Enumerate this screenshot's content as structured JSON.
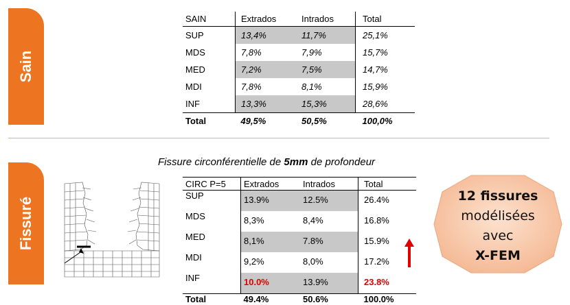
{
  "tabs": {
    "sain": "Sain",
    "fissure": "Fissuré"
  },
  "table_sain": {
    "headers": [
      "SAIN",
      "Extrados",
      "Intrados",
      "Total"
    ],
    "rows": [
      [
        "SUP",
        "13,4%",
        "11,7%",
        "25,1%"
      ],
      [
        "MDS",
        "7,8%",
        "7,9%",
        "15,7%"
      ],
      [
        "MED",
        "7,2%",
        "7,5%",
        "14,7%"
      ],
      [
        "MDI",
        "7,8%",
        "8,1%",
        "15,9%"
      ],
      [
        "INF",
        "13,3%",
        "15,3%",
        "28,6%"
      ]
    ],
    "total": [
      "Total",
      "49,5%",
      "50,5%",
      "100,0%"
    ]
  },
  "caption": {
    "prefix": "Fissure circonférentielle de ",
    "depth": "5mm",
    "suffix": " de profondeur"
  },
  "table_fissure": {
    "headers": [
      "CIRC P=5",
      "Extrados",
      "Intrados",
      "Total"
    ],
    "rows": [
      [
        "SUP",
        "13.9%",
        "12.5%",
        "26.4%"
      ],
      [
        "MDS",
        "8,3%",
        "8,4%",
        "16.8%"
      ],
      [
        "MED",
        "8,1%",
        "7.8%",
        "15.9%"
      ],
      [
        "MDI",
        "9,2%",
        "8,0%",
        "17.2%"
      ],
      [
        "INF",
        "10.0%",
        "13.9%",
        "23.8%"
      ]
    ],
    "total": [
      "Total",
      "49.4%",
      "50.6%",
      "100.0%"
    ]
  },
  "badge": {
    "line1": "12 fissures",
    "line2": "modélisées",
    "line3": "avec",
    "line4": "X-FEM"
  },
  "colors": {
    "accent": "#ed7420",
    "shade": "#c8c8c8",
    "highlight": "#e00000",
    "badge": "#f7c9a8"
  },
  "icons": {
    "arrow": "red-up-arrow-icon",
    "mesh": "mesh-drawing"
  }
}
